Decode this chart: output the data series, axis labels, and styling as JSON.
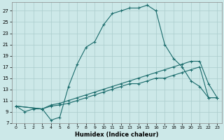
{
  "xlabel": "Humidex (Indice chaleur)",
  "bg_color": "#cce8e8",
  "grid_color": "#aacccc",
  "line_color": "#1a6b6b",
  "xlim": [
    -0.5,
    23.5
  ],
  "ylim": [
    7,
    28.5
  ],
  "yticks": [
    7,
    9,
    11,
    13,
    15,
    17,
    19,
    21,
    23,
    25,
    27
  ],
  "xticks": [
    0,
    1,
    2,
    3,
    4,
    5,
    6,
    7,
    8,
    9,
    10,
    11,
    12,
    13,
    14,
    15,
    16,
    17,
    18,
    19,
    20,
    21,
    22,
    23
  ],
  "line1_x": [
    0,
    1,
    2,
    3,
    4,
    5,
    6,
    7,
    8,
    9,
    10,
    11,
    12,
    13,
    14,
    15,
    16,
    17,
    18,
    19,
    20,
    21,
    22,
    23
  ],
  "line1_y": [
    10,
    9,
    9.5,
    9.5,
    7.5,
    8,
    13.5,
    17.5,
    20.5,
    21.5,
    24.5,
    26.5,
    27,
    27.5,
    27.5,
    28,
    27,
    21,
    18.5,
    17,
    14.5,
    13.5,
    11.5,
    11.5
  ],
  "line2_x": [
    0,
    3,
    4,
    5,
    6,
    7,
    8,
    9,
    10,
    11,
    12,
    13,
    14,
    15,
    16,
    17,
    18,
    19,
    20,
    21,
    22,
    23
  ],
  "line2_y": [
    10,
    9.5,
    10.2,
    10.5,
    11,
    11.5,
    12,
    12.5,
    13,
    13.5,
    14,
    14.5,
    15,
    15.5,
    16,
    16.5,
    17,
    17.5,
    18,
    18,
    14,
    11.5
  ],
  "line3_x": [
    0,
    3,
    4,
    5,
    6,
    7,
    8,
    9,
    10,
    11,
    12,
    13,
    14,
    15,
    16,
    17,
    18,
    19,
    20,
    21,
    22,
    23
  ],
  "line3_y": [
    10,
    9.5,
    10,
    10.2,
    10.5,
    11,
    11.5,
    12,
    12.5,
    13,
    13.5,
    14,
    14,
    14.5,
    15,
    15,
    15.5,
    16,
    16.5,
    17,
    11.5,
    11.5
  ]
}
